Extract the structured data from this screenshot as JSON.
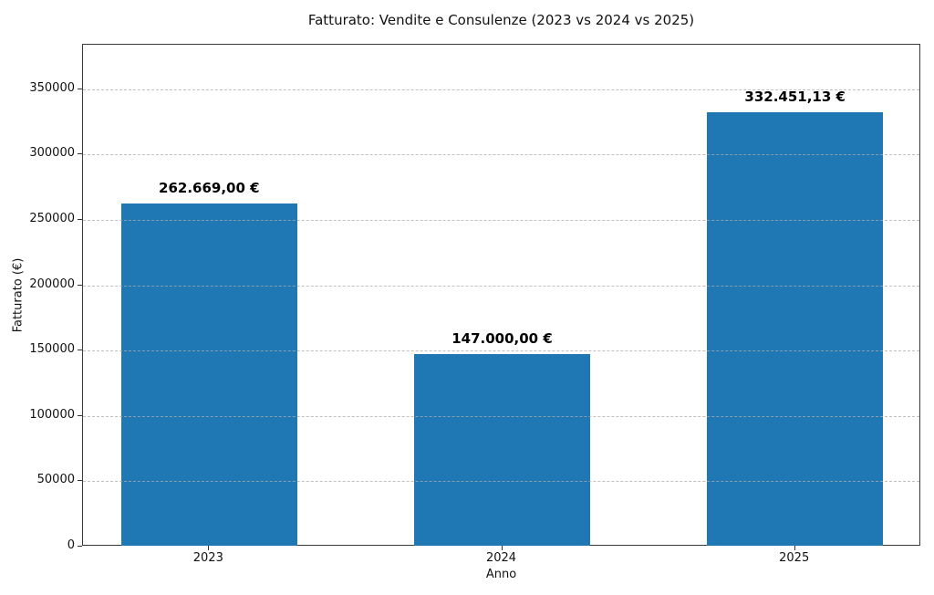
{
  "chart_data": {
    "type": "bar",
    "title": "Fatturato: Vendite e Consulenze (2023 vs 2024 vs 2025)",
    "xlabel": "Anno",
    "ylabel": "Fatturato (€)",
    "categories": [
      "2023",
      "2024",
      "2025"
    ],
    "values": [
      262669.0,
      147000.0,
      332451.13
    ],
    "value_labels": [
      "262.669,00 €",
      "147.000,00 €",
      "332.451,13 €"
    ],
    "bar_color": "#1f77b4",
    "ylim": [
      0,
      384000
    ],
    "yticks": [
      0,
      50000,
      100000,
      150000,
      200000,
      250000,
      300000,
      350000
    ],
    "ytick_labels": [
      "0",
      "50000",
      "100000",
      "150000",
      "200000",
      "250000",
      "300000",
      "350000"
    ],
    "grid": "horizontal-dashed-over-bars",
    "legend": "none"
  }
}
